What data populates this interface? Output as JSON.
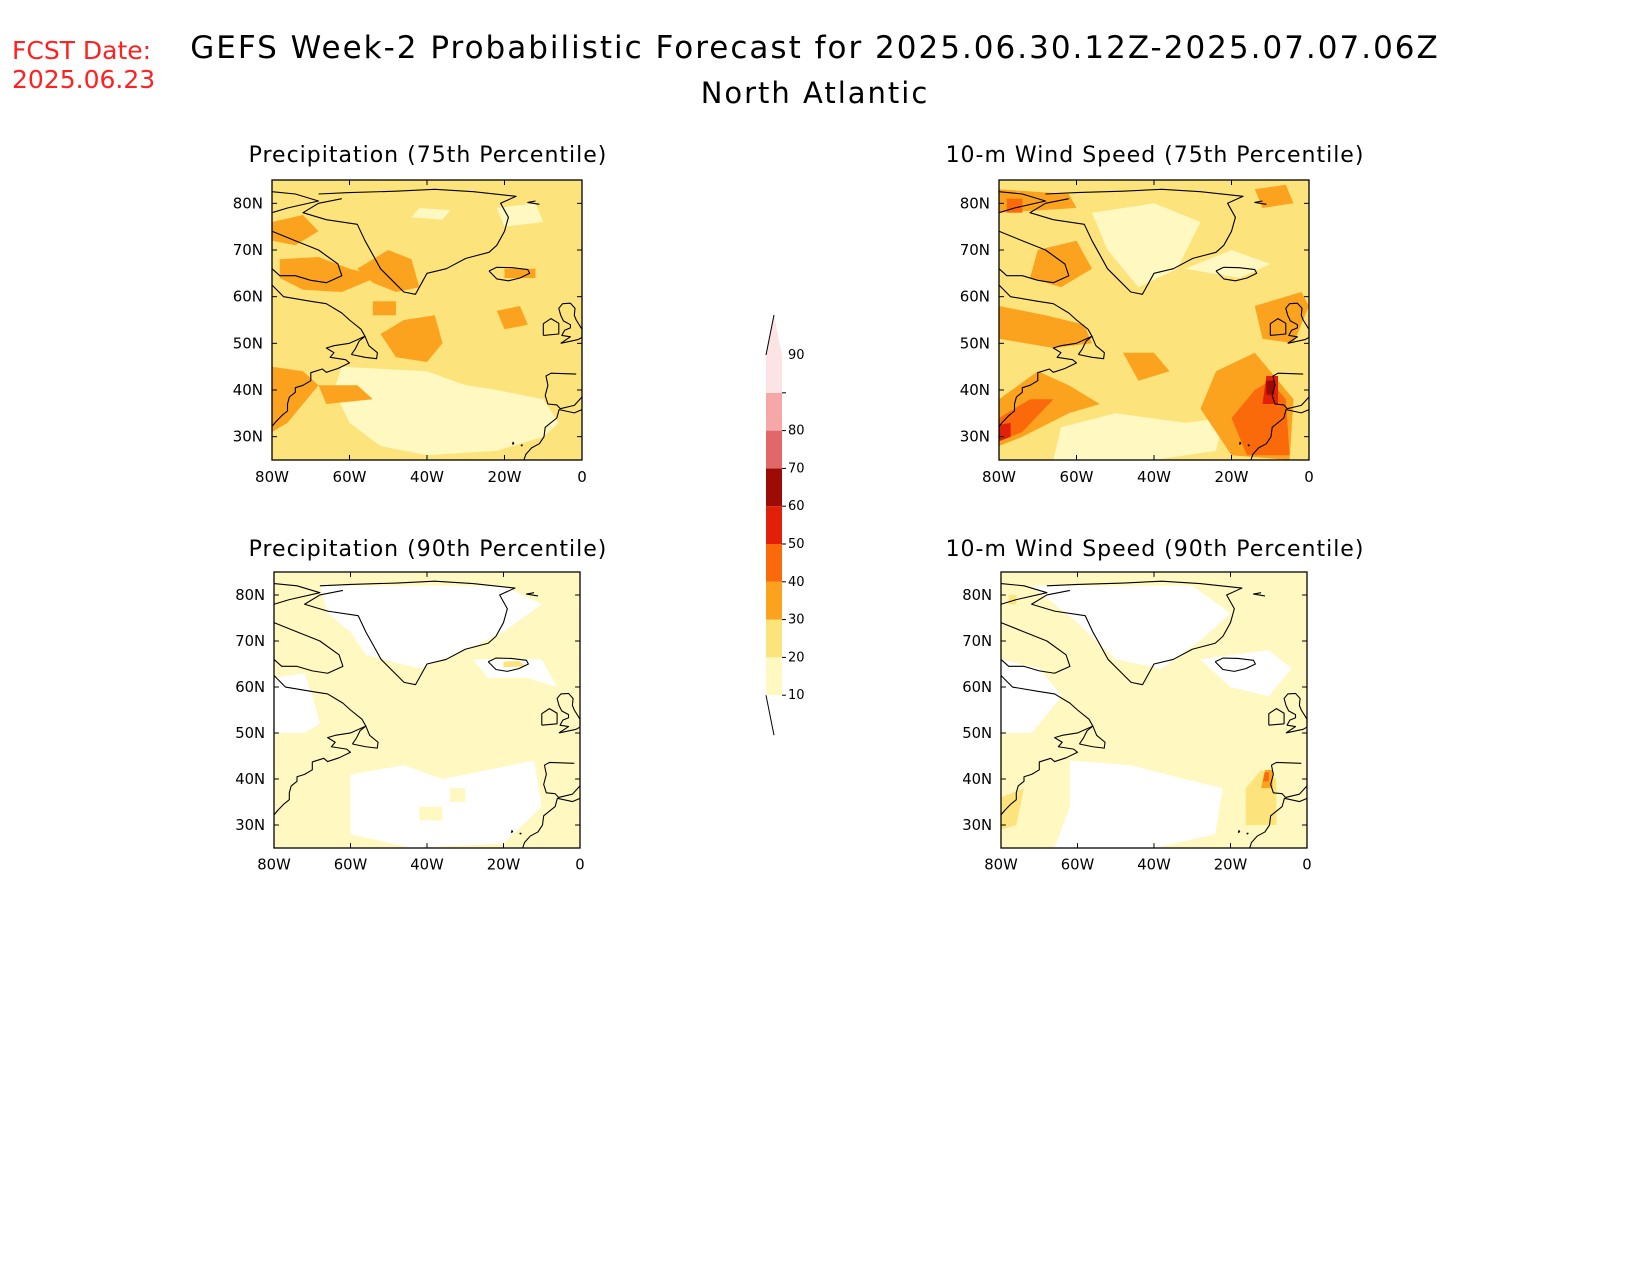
{
  "fcst_date_label": "FCST Date:",
  "fcst_date": "2025.06.23",
  "title": "GEFS Week-2 Probabilistic Forecast for 2025.06.30.12Z-2025.07.07.06Z",
  "region": "North Atlantic",
  "colors": {
    "c10": "#fff8c0",
    "c20": "#fde37c",
    "c30": "#fba31e",
    "c40": "#fb6a0a",
    "c50": "#e02008",
    "c60": "#9e0a04",
    "c70": "#e06868",
    "c80": "#f6a8a8",
    "c90": "#fde4e4",
    "coast": "#000000"
  },
  "map_extent": {
    "lon": [
      -80,
      0
    ],
    "lat": [
      25,
      85
    ]
  },
  "lat_ticks": [
    "80N",
    "70N",
    "60N",
    "50N",
    "40N",
    "30N"
  ],
  "lon_ticks": [
    "80W",
    "60W",
    "40W",
    "20W",
    "0"
  ],
  "colorbar": {
    "levels": [
      "10",
      "20",
      "30",
      "40",
      "50",
      "60",
      "70",
      "80",
      "90"
    ]
  },
  "panels": [
    {
      "title": "Precipitation (75th Percentile)",
      "field": "precip75"
    },
    {
      "title": "10-m Wind Speed (75th Percentile)",
      "field": "wind75"
    },
    {
      "title": "Precipitation (90th Percentile)",
      "field": "precip90"
    },
    {
      "title": "10-m Wind Speed (90th Percentile)",
      "field": "wind90"
    }
  ]
}
